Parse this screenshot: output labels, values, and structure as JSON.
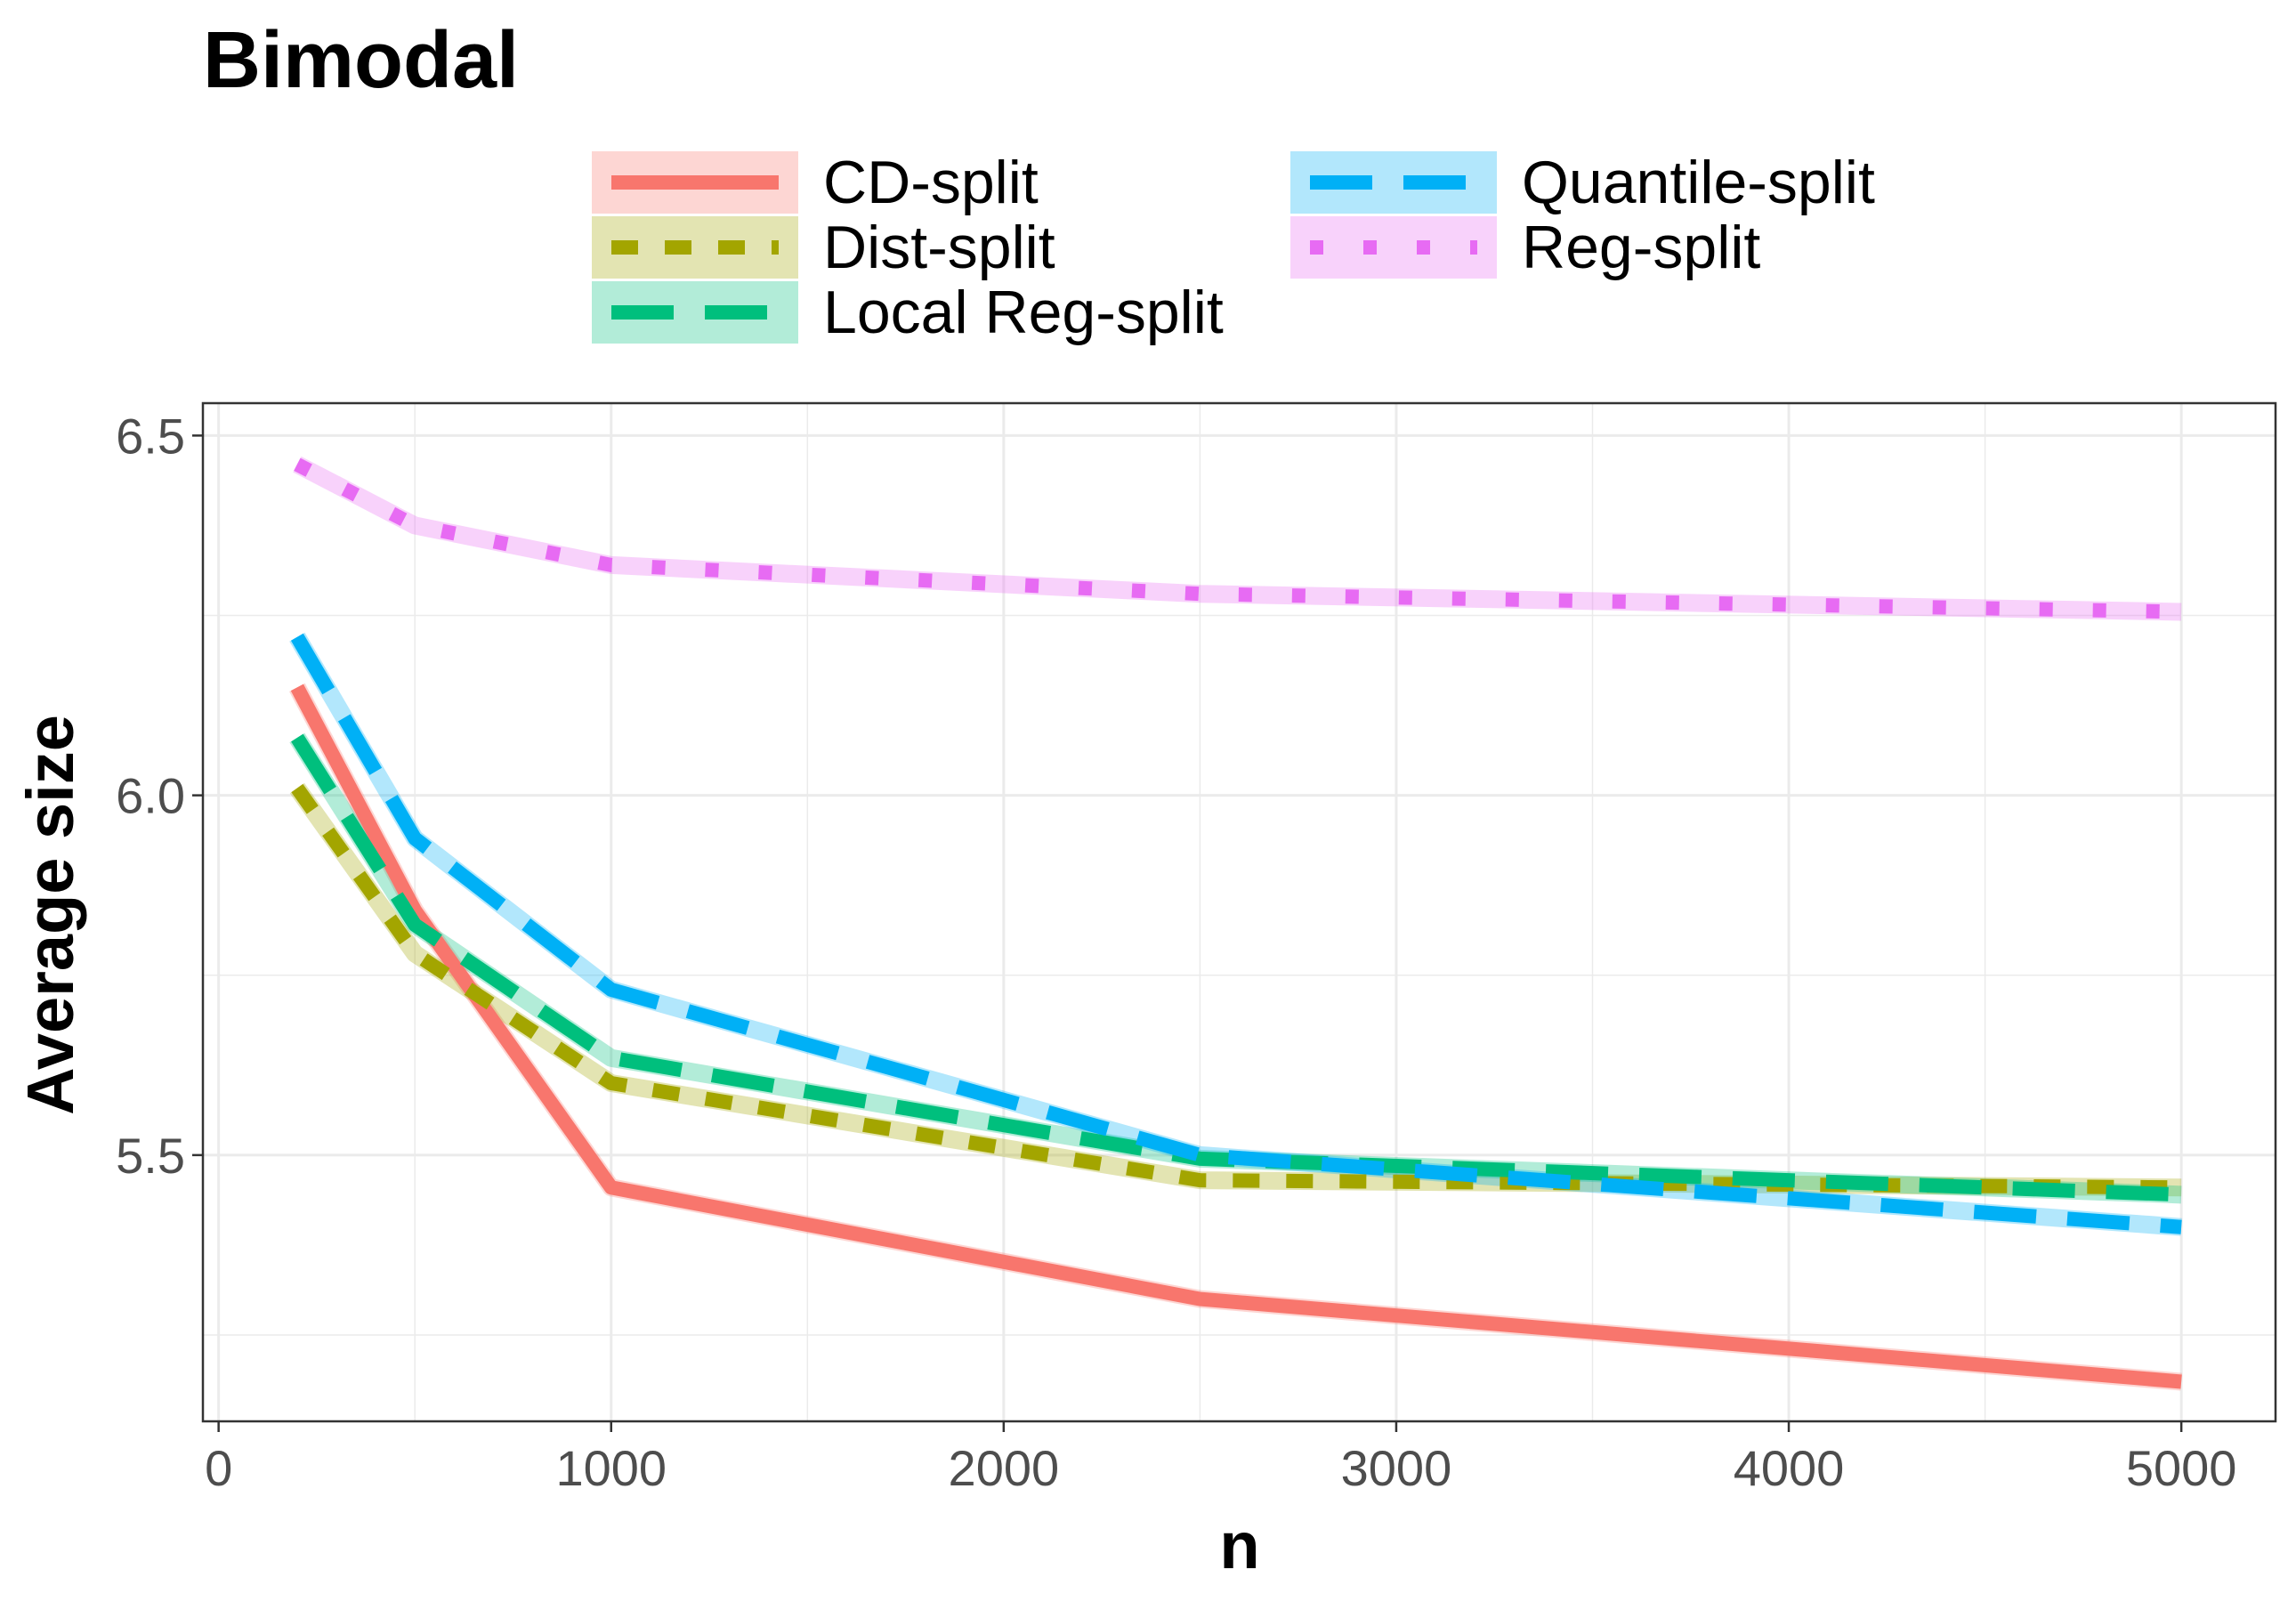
{
  "chart_data": {
    "type": "line",
    "title": "Bimodal",
    "xlabel": "n",
    "ylabel": "Average size",
    "xlim": [
      -40,
      5240
    ],
    "ylim": [
      5.13,
      6.545
    ],
    "x_ticks": [
      0,
      1000,
      2000,
      3000,
      4000,
      5000
    ],
    "y_ticks": [
      5.5,
      6.0,
      6.5
    ],
    "y_minor_ticks": [
      5.25,
      5.75,
      6.25
    ],
    "x_minor_ticks": [
      500,
      1500,
      2500,
      3500,
      4500
    ],
    "x_tick_labels": [
      "0",
      "1000",
      "2000",
      "3000",
      "4000",
      "5000"
    ],
    "y_tick_labels": [
      "5.5",
      "6.0",
      "6.5"
    ],
    "grid": true,
    "legend_position": "top",
    "x": [
      200,
      500,
      1000,
      2500,
      5000
    ],
    "series": [
      {
        "name": "CD-split",
        "color": "#F8766D",
        "linestyle": "solid",
        "values": [
          6.15,
          5.84,
          5.455,
          5.3,
          5.185
        ]
      },
      {
        "name": "Dist-split",
        "color": "#A3A500",
        "linestyle": "dashed",
        "values": [
          6.01,
          5.78,
          5.6,
          5.465,
          5.455
        ]
      },
      {
        "name": "Local Reg-split",
        "color": "#00BF7D",
        "linestyle": "longdash",
        "values": [
          6.08,
          5.82,
          5.635,
          5.495,
          5.445
        ]
      },
      {
        "name": "Quantile-split",
        "color": "#00B0F6",
        "linestyle": "longdash",
        "values": [
          6.22,
          5.94,
          5.73,
          5.5,
          5.4
        ]
      },
      {
        "name": "Reg-split",
        "color": "#E76BF3",
        "linestyle": "dotted",
        "values": [
          6.46,
          6.375,
          6.32,
          6.28,
          6.255
        ]
      }
    ]
  }
}
